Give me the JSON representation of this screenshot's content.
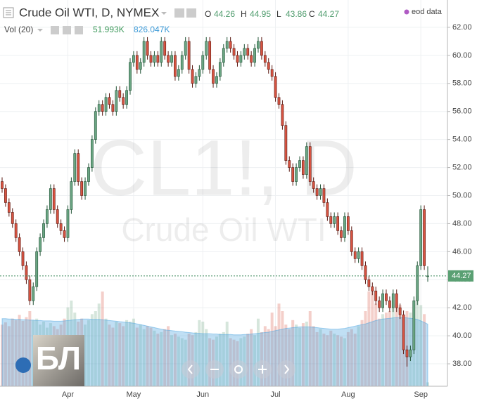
{
  "chart_data": {
    "type": "candlestick",
    "title": "Crude Oil WTI, D, NYMEX",
    "watermark": "CL1!, D",
    "watermark_subtitle": "Crude Oil WTI",
    "source_note": "eod data",
    "logo_text": "БЛ",
    "ohlc_letters": [
      "O",
      "H",
      "L",
      "C"
    ],
    "categories": [
      null,
      null,
      null,
      null,
      null,
      null,
      null,
      null,
      null,
      null,
      null,
      null,
      null,
      null,
      null,
      null,
      null,
      null,
      null,
      "Apr",
      null,
      null,
      null,
      null,
      null,
      null,
      null,
      null,
      null,
      null,
      null,
      null,
      null,
      null,
      null,
      null,
      null,
      null,
      "May",
      null,
      null,
      null,
      null,
      null,
      null,
      null,
      null,
      null,
      null,
      null,
      null,
      null,
      null,
      null,
      null,
      null,
      null,
      null,
      "Jun",
      null,
      null,
      null,
      null,
      null,
      null,
      null,
      null,
      null,
      null,
      null,
      null,
      null,
      null,
      null,
      null,
      null,
      null,
      null,
      null,
      "Jul",
      null,
      null,
      null,
      null,
      null,
      null,
      null,
      null,
      null,
      null,
      null,
      null,
      null,
      null,
      null,
      null,
      null,
      null,
      null,
      null,
      "Aug",
      null,
      null,
      null,
      null,
      null,
      null,
      null,
      null,
      null,
      null,
      null,
      null,
      null,
      null,
      null,
      null,
      null,
      null,
      null,
      null,
      "Sep",
      null,
      null
    ],
    "open": [
      51,
      50.5,
      49.5,
      48.8,
      48,
      47,
      46,
      45,
      44,
      42.5,
      43.5,
      46,
      47,
      48,
      49,
      50.5,
      49,
      48,
      47.5,
      47,
      49,
      51,
      53,
      51,
      50,
      51,
      52,
      54,
      56,
      56.5,
      56,
      57,
      56.5,
      56,
      57.5,
      57,
      56.5,
      57.5,
      59.5,
      60,
      59,
      59.5,
      61,
      60,
      59.5,
      60,
      59.5,
      61,
      60,
      59.5,
      60,
      58.5,
      59,
      60,
      61,
      59,
      58,
      58.5,
      59,
      60,
      61,
      59,
      58,
      58.5,
      59.5,
      60.5,
      61,
      60.5,
      60,
      59.5,
      60,
      60.5,
      60,
      59.5,
      60.5,
      61,
      60,
      59.5,
      59,
      58.5,
      57,
      56.5,
      55,
      52.5,
      52,
      51,
      52,
      52.5,
      51.5,
      53.5,
      51,
      50.5,
      50,
      50.5,
      49.5,
      48.5,
      48,
      48.5,
      47.5,
      47,
      48.5,
      47.5,
      46,
      45.5,
      46,
      45,
      44,
      43.5,
      43.2,
      42.5,
      42,
      43,
      42.5,
      42,
      43,
      42,
      41.5,
      39,
      38.5,
      39,
      42.5,
      45,
      49,
      44.26
    ],
    "high": [
      51.3,
      50.8,
      49.8,
      49.1,
      48.3,
      47.3,
      46.3,
      45.3,
      44.3,
      43.8,
      46.3,
      47.3,
      48.3,
      49.3,
      50.8,
      50.8,
      49.3,
      48.3,
      47.8,
      49.3,
      51.3,
      53.3,
      53.3,
      51.3,
      51.3,
      52.3,
      54.3,
      56.3,
      56.8,
      56.8,
      57.3,
      57.3,
      56.8,
      57.8,
      57.8,
      57.3,
      57.8,
      59.8,
      60.3,
      60.3,
      59.8,
      61.3,
      61.3,
      60.3,
      60.3,
      60.3,
      61.3,
      61.3,
      60.3,
      60.3,
      60.3,
      59.3,
      60.3,
      61.3,
      61.3,
      59.3,
      58.8,
      59.3,
      60.3,
      61.3,
      61.3,
      59.3,
      58.8,
      59.8,
      60.8,
      61.3,
      61.3,
      60.8,
      60.3,
      60.3,
      60.8,
      60.8,
      60.3,
      60.8,
      61.3,
      61.3,
      60.3,
      59.8,
      59.3,
      58.8,
      57.3,
      56.8,
      55.3,
      52.8,
      52.3,
      52.3,
      52.8,
      52.8,
      53.8,
      53.8,
      51.3,
      50.8,
      50.8,
      50.8,
      49.8,
      48.8,
      48.8,
      48.8,
      47.8,
      48.8,
      48.8,
      47.8,
      46.3,
      46.3,
      46.3,
      45.3,
      44.3,
      43.8,
      43.5,
      42.8,
      43.3,
      43.3,
      42.8,
      43.3,
      43.3,
      42.3,
      41.8,
      39.3,
      39.3,
      42.8,
      45.3,
      49.3,
      49.3,
      44.95
    ],
    "low": [
      50.2,
      49.2,
      48.5,
      47.7,
      46.7,
      45.7,
      44.7,
      43.7,
      42.2,
      42.2,
      43.2,
      45.7,
      46.7,
      47.7,
      48.7,
      48.7,
      47.7,
      47.2,
      46.7,
      46.7,
      48.7,
      50.7,
      50.7,
      49.7,
      49.7,
      50.7,
      51.7,
      53.7,
      55.7,
      55.7,
      55.7,
      56.2,
      55.7,
      55.7,
      56.7,
      56.2,
      56.2,
      57.2,
      59.2,
      58.7,
      58.7,
      59.2,
      59.7,
      59.2,
      59.2,
      59.2,
      59.2,
      59.7,
      59.2,
      59.2,
      58.2,
      58.2,
      58.7,
      59.7,
      58.7,
      57.7,
      57.7,
      58.2,
      58.7,
      59.7,
      58.7,
      57.7,
      57.7,
      58.2,
      59.2,
      60.2,
      60.2,
      59.7,
      59.2,
      59.2,
      59.7,
      59.7,
      59.2,
      59.2,
      60.2,
      59.7,
      59.2,
      58.7,
      58.2,
      56.7,
      56.2,
      54.7,
      52.2,
      51.7,
      50.7,
      50.7,
      51.7,
      51.2,
      51.2,
      50.7,
      50.2,
      49.7,
      49.7,
      49.2,
      48.2,
      47.7,
      47.7,
      47.2,
      46.7,
      46.7,
      47.2,
      45.7,
      45.2,
      45.2,
      44.7,
      43.7,
      43.2,
      42.9,
      42.2,
      41.7,
      41.7,
      42.2,
      41.7,
      41.7,
      41.7,
      41.2,
      38.7,
      37.8,
      38.2,
      38.7,
      42.2,
      44.7,
      44.7,
      43.86
    ],
    "close": [
      50.5,
      49.5,
      48.8,
      48,
      47,
      46,
      45,
      44,
      42.5,
      43.5,
      46,
      47,
      48,
      49,
      50.5,
      49,
      48,
      47.5,
      47,
      49,
      51,
      53,
      51,
      50,
      51,
      52,
      54,
      56,
      56.5,
      56,
      57,
      56.5,
      56,
      57.5,
      57,
      56.5,
      57.5,
      59.5,
      60,
      59,
      59.5,
      61,
      60,
      59.5,
      60,
      59.5,
      61,
      60,
      59.5,
      60,
      58.5,
      59,
      60,
      61,
      59,
      58,
      58.5,
      59,
      60,
      61,
      59,
      58,
      58.5,
      59.5,
      60.5,
      61,
      60.5,
      60,
      59.5,
      60,
      60.5,
      60,
      59.5,
      60.5,
      61,
      60,
      59.5,
      59,
      58.5,
      57,
      56.5,
      55,
      52.5,
      52,
      51,
      52,
      52.5,
      51.5,
      53.5,
      51,
      50.5,
      50,
      50.5,
      49.5,
      48.5,
      48,
      48.5,
      47.5,
      47,
      48.5,
      47.5,
      46,
      45.5,
      46,
      45,
      44,
      43.5,
      43.2,
      42.5,
      42,
      43,
      42.5,
      42,
      43,
      42,
      41.5,
      39,
      38.5,
      39,
      42.5,
      45,
      49,
      45,
      44.27
    ],
    "up_color": "#6ba583",
    "down_color": "#d75442",
    "ylim": [
      36.4,
      63.95
    ],
    "yticks": [
      {
        "value": 38,
        "label": "38.00"
      },
      {
        "value": 40,
        "label": "40.00"
      },
      {
        "value": 42,
        "label": "42.00"
      },
      {
        "value": 44,
        "label": "44.00"
      },
      {
        "value": 46,
        "label": "46.00"
      },
      {
        "value": 48,
        "label": "48.00"
      },
      {
        "value": 50,
        "label": "50.00"
      },
      {
        "value": 52,
        "label": "52.00"
      },
      {
        "value": 54,
        "label": "54.00"
      },
      {
        "value": 56,
        "label": "56.00"
      },
      {
        "value": 58,
        "label": "58.00"
      },
      {
        "value": 60,
        "label": "60.00"
      },
      {
        "value": 62,
        "label": "62.00"
      }
    ],
    "grid": true,
    "volume": {
      "title": "Vol (20)",
      "values": [
        820,
        850,
        800,
        900,
        880,
        950,
        870,
        920,
        1000,
        880,
        900,
        820,
        860,
        780,
        840,
        800,
        760,
        820,
        900,
        1050,
        1140,
        980,
        860,
        900,
        820,
        880,
        960,
        1000,
        1100,
        1260,
        900,
        820,
        780,
        860,
        840,
        800,
        880,
        860,
        900,
        780,
        820,
        760,
        800,
        780,
        740,
        700,
        720,
        760,
        800,
        680,
        700,
        660,
        640,
        620,
        700,
        680,
        720,
        880,
        860,
        760,
        640,
        620,
        660,
        700,
        720,
        860,
        640,
        620,
        600,
        640,
        660,
        700,
        760,
        680,
        900,
        720,
        800,
        760,
        980,
        800,
        1100,
        1000,
        820,
        760,
        880,
        820,
        780,
        840,
        860,
        1000,
        800,
        720,
        760,
        700,
        680,
        740,
        700,
        680,
        660,
        640,
        720,
        760,
        700,
        800,
        880,
        1000,
        1260,
        1300,
        1100,
        900,
        960,
        980,
        1000,
        1040,
        1100,
        1080,
        900,
        1000,
        980,
        1100,
        1200,
        1080,
        960,
        51.993
      ],
      "ma": [
        900,
        900,
        895,
        895,
        890,
        890,
        885,
        885,
        880,
        880,
        875,
        875,
        870,
        870,
        870,
        865,
        865,
        865,
        870,
        875,
        880,
        885,
        890,
        895,
        895,
        895,
        890,
        890,
        890,
        885,
        880,
        875,
        870,
        865,
        860,
        855,
        850,
        845,
        840,
        830,
        820,
        810,
        800,
        790,
        780,
        770,
        760,
        750,
        745,
        740,
        735,
        730,
        725,
        720,
        715,
        710,
        705,
        705,
        700,
        700,
        700,
        695,
        695,
        690,
        690,
        690,
        690,
        685,
        685,
        685,
        690,
        690,
        695,
        700,
        705,
        710,
        715,
        720,
        730,
        740,
        750,
        760,
        770,
        775,
        780,
        785,
        790,
        790,
        790,
        790,
        785,
        780,
        775,
        770,
        765,
        760,
        760,
        760,
        765,
        770,
        780,
        790,
        800,
        810,
        820,
        830,
        845,
        860,
        875,
        885,
        895,
        900,
        905,
        910,
        915,
        915,
        915,
        910,
        905,
        900,
        890,
        870,
        850,
        826.047
      ],
      "ma_color": "#4aa3df",
      "readout": {
        "value": 51.993,
        "label": "51.993K"
      },
      "ma_readout": {
        "value": 826.047,
        "label": "826.047K"
      }
    }
  }
}
